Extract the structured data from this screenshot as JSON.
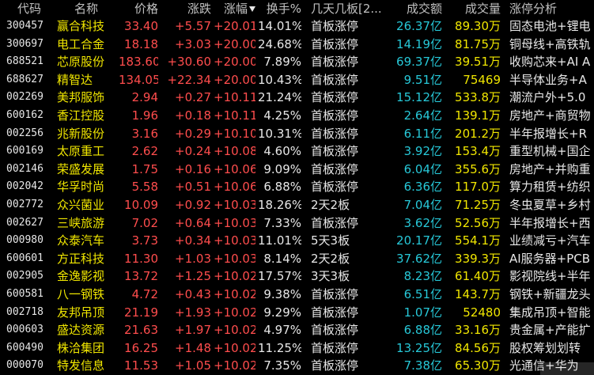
{
  "header": {
    "code": "代码",
    "name": "名称",
    "price": "价格",
    "change": "涨跌",
    "change_pct": "涨幅",
    "turnover": "换手%",
    "days_boards": "几天几板[2...",
    "amount": "成交额",
    "volume": "成交量",
    "analysis": "涨停分析"
  },
  "colors": {
    "background": "#000000",
    "up": "#ff4d4d",
    "name": "#f0e600",
    "amount": "#27c8d8"
  },
  "rows": [
    {
      "code": "300457",
      "name": "赢合科技",
      "price": "33.40",
      "change": "+5.57",
      "pct": "+20.01%",
      "turnover": "14.01%",
      "days": "首板涨停",
      "amount": "26.37亿",
      "volume": "89.30万",
      "analysis": "固态电池+锂电"
    },
    {
      "code": "300697",
      "name": "电工合金",
      "price": "18.18",
      "change": "+3.03",
      "pct": "+20.00%",
      "turnover": "24.68%",
      "days": "首板涨停",
      "amount": "14.19亿",
      "volume": "81.75万",
      "analysis": "铜母线+高铁轨"
    },
    {
      "code": "688521",
      "name": "芯原股份",
      "price": "183.60",
      "change": "+30.60",
      "pct": "+20.00%",
      "turnover": "7.89%",
      "days": "首板涨停",
      "amount": "69.37亿",
      "volume": "39.51万",
      "analysis": "收购芯来+AI A"
    },
    {
      "code": "688627",
      "name": "精智达",
      "price": "134.05",
      "change": "+22.34",
      "pct": "+20.00%",
      "turnover": "10.43%",
      "days": "首板涨停",
      "amount": "9.51亿",
      "volume": "75469",
      "analysis": "半导体业务+A"
    },
    {
      "code": "002269",
      "name": "美邦服饰",
      "price": "2.94",
      "change": "+0.27",
      "pct": "+10.11%",
      "turnover": "21.24%",
      "days": "首板涨停",
      "amount": "15.12亿",
      "volume": "533.8万",
      "analysis": "潮流户外+5.0"
    },
    {
      "code": "600162",
      "name": "香江控股",
      "price": "1.96",
      "change": "+0.18",
      "pct": "+10.11%",
      "turnover": "4.25%",
      "days": "首板涨停",
      "amount": "2.64亿",
      "volume": "139.1万",
      "analysis": "房地产+商贸物"
    },
    {
      "code": "002256",
      "name": "兆新股份",
      "price": "3.16",
      "change": "+0.29",
      "pct": "+10.10%",
      "turnover": "10.31%",
      "days": "首板涨停",
      "amount": "6.11亿",
      "volume": "201.2万",
      "analysis": "半年报增长+R"
    },
    {
      "code": "600169",
      "name": "太原重工",
      "price": "2.62",
      "change": "+0.24",
      "pct": "+10.08%",
      "turnover": "4.60%",
      "days": "首板涨停",
      "amount": "3.92亿",
      "volume": "153.4万",
      "analysis": "重型机械+国企"
    },
    {
      "code": "002146",
      "name": "荣盛发展",
      "price": "1.75",
      "change": "+0.16",
      "pct": "+10.06%",
      "turnover": "9.09%",
      "days": "首板涨停",
      "amount": "6.04亿",
      "volume": "355.6万",
      "analysis": "房地产+并购重"
    },
    {
      "code": "002042",
      "name": "华孚时尚",
      "price": "5.58",
      "change": "+0.51",
      "pct": "+10.06%",
      "turnover": "6.88%",
      "days": "首板涨停",
      "amount": "6.36亿",
      "volume": "117.0万",
      "analysis": "算力租赁+纺织"
    },
    {
      "code": "002772",
      "name": "众兴菌业",
      "price": "10.09",
      "change": "+0.92",
      "pct": "+10.03%",
      "turnover": "18.26%",
      "days": "2天2板",
      "amount": "7.04亿",
      "volume": "71.25万",
      "analysis": "冬虫夏草+乡村"
    },
    {
      "code": "002627",
      "name": "三峡旅游",
      "price": "7.02",
      "change": "+0.64",
      "pct": "+10.03%",
      "turnover": "7.33%",
      "days": "首板涨停",
      "amount": "3.62亿",
      "volume": "52.56万",
      "analysis": "半年报增长+西"
    },
    {
      "code": "000980",
      "name": "众泰汽车",
      "price": "3.73",
      "change": "+0.34",
      "pct": "+10.03%",
      "turnover": "11.01%",
      "days": "5天3板",
      "amount": "20.17亿",
      "volume": "554.1万",
      "analysis": "业绩减亏+汽车"
    },
    {
      "code": "600601",
      "name": "方正科技",
      "price": "11.30",
      "change": "+1.03",
      "pct": "+10.03%",
      "turnover": "8.14%",
      "days": "2天2板",
      "amount": "37.62亿",
      "volume": "339.3万",
      "analysis": "AI服务器+PCB"
    },
    {
      "code": "002905",
      "name": "金逸影视",
      "price": "13.72",
      "change": "+1.25",
      "pct": "+10.02%",
      "turnover": "17.57%",
      "days": "3天3板",
      "amount": "8.23亿",
      "volume": "61.40万",
      "analysis": "影视院线+半年"
    },
    {
      "code": "600581",
      "name": "八一钢铁",
      "price": "4.72",
      "change": "+0.43",
      "pct": "+10.02%",
      "turnover": "9.38%",
      "days": "首板涨停",
      "amount": "6.51亿",
      "volume": "143.7万",
      "analysis": "钢铁+新疆龙头"
    },
    {
      "code": "002718",
      "name": "友邦吊顶",
      "price": "21.19",
      "change": "+1.93",
      "pct": "+10.02%",
      "turnover": "9.29%",
      "days": "首板涨停",
      "amount": "1.07亿",
      "volume": "52480",
      "analysis": "集成吊顶+智能"
    },
    {
      "code": "000603",
      "name": "盛达资源",
      "price": "21.63",
      "change": "+1.97",
      "pct": "+10.02%",
      "turnover": "4.97%",
      "days": "首板涨停",
      "amount": "6.88亿",
      "volume": "33.16万",
      "analysis": "贵金属+产能扩"
    },
    {
      "code": "600490",
      "name": "株洽集团",
      "price": "16.25",
      "change": "+1.48",
      "pct": "+10.02%",
      "turnover": "11.25%",
      "days": "首板涨停",
      "amount": "13.25亿",
      "volume": "84.56万",
      "analysis": "股权筹划划转"
    },
    {
      "code": "000070",
      "name": "特发信息",
      "price": "11.53",
      "change": "+1.05",
      "pct": "+10.02%",
      "turnover": "7.35%",
      "days": "首板涨停",
      "amount": "7.38亿",
      "volume": "65.30万",
      "analysis": "光通信+华为"
    }
  ]
}
